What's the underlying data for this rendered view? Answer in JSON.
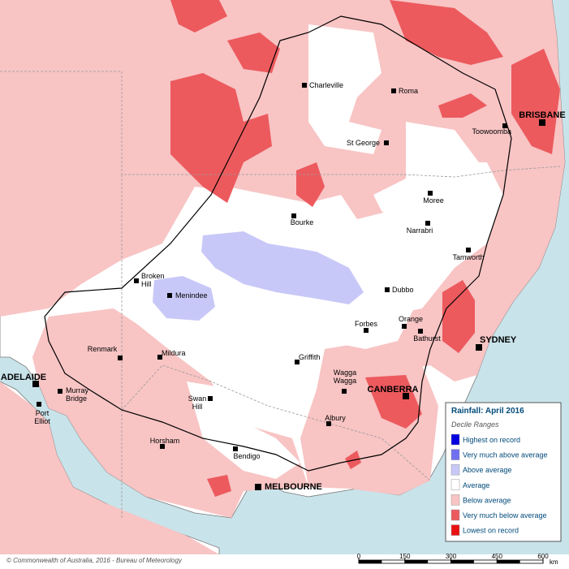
{
  "map": {
    "cities": [
      "Charleville",
      "Roma",
      "St George",
      "Toowoomba",
      "BRISBANE",
      "Moree",
      "Bourke",
      "Narrabri",
      "Tamworth",
      "Broken Hill",
      "Menindee",
      "Dubbo",
      "Orange",
      "Forbes",
      "Bathurst",
      "SYDNEY",
      "Renmark",
      "Mildura",
      "Griffith",
      "ADELAIDE",
      "Murray Bridge",
      "Wagga Wagga",
      "CANBERRA",
      "Port Elliot",
      "Swan Hill",
      "Albury",
      "Horsham",
      "Bendigo",
      "MELBOURNE"
    ],
    "legend": {
      "title": "Rainfall: April 2016",
      "subtitle": "Decile Ranges",
      "items": [
        {
          "name": "Highest on record",
          "color": "#0000e0"
        },
        {
          "name": "Very much above average",
          "color": "#7070f0"
        },
        {
          "name": "Above average",
          "color": "#c8c8f8"
        },
        {
          "name": "Average",
          "color": "#ffffff"
        },
        {
          "name": "Below average",
          "color": "#f8c4c4"
        },
        {
          "name": "Very much below average",
          "color": "#ec5a5e"
        },
        {
          "name": "Lowest on record",
          "color": "#e81010"
        }
      ]
    },
    "footer": "© Commonwealth of Australia, 2016 - Bureau of Meteorology",
    "scale": {
      "ticks": [
        0,
        150,
        300,
        450,
        600
      ],
      "unit": "km"
    }
  }
}
